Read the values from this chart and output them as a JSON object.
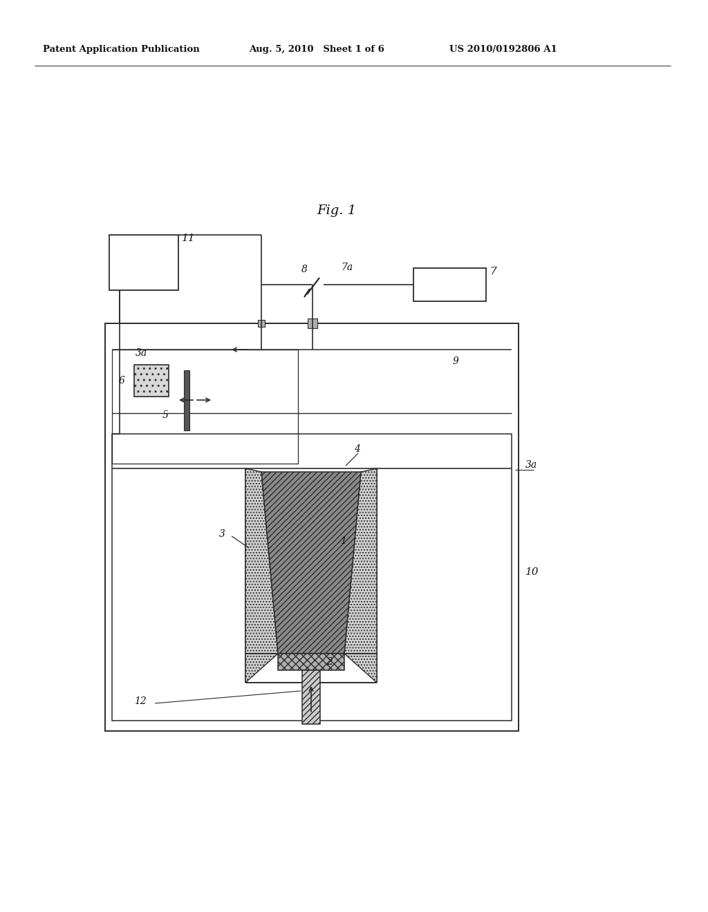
{
  "header_left": "Patent Application Publication",
  "header_mid": "Aug. 5, 2010   Sheet 1 of 6",
  "header_right": "US 2010/0192806 A1",
  "fig_label": "Fig. 1",
  "bg_color": "#ffffff",
  "lc": "#2a2a2a",
  "lw": 1.2
}
